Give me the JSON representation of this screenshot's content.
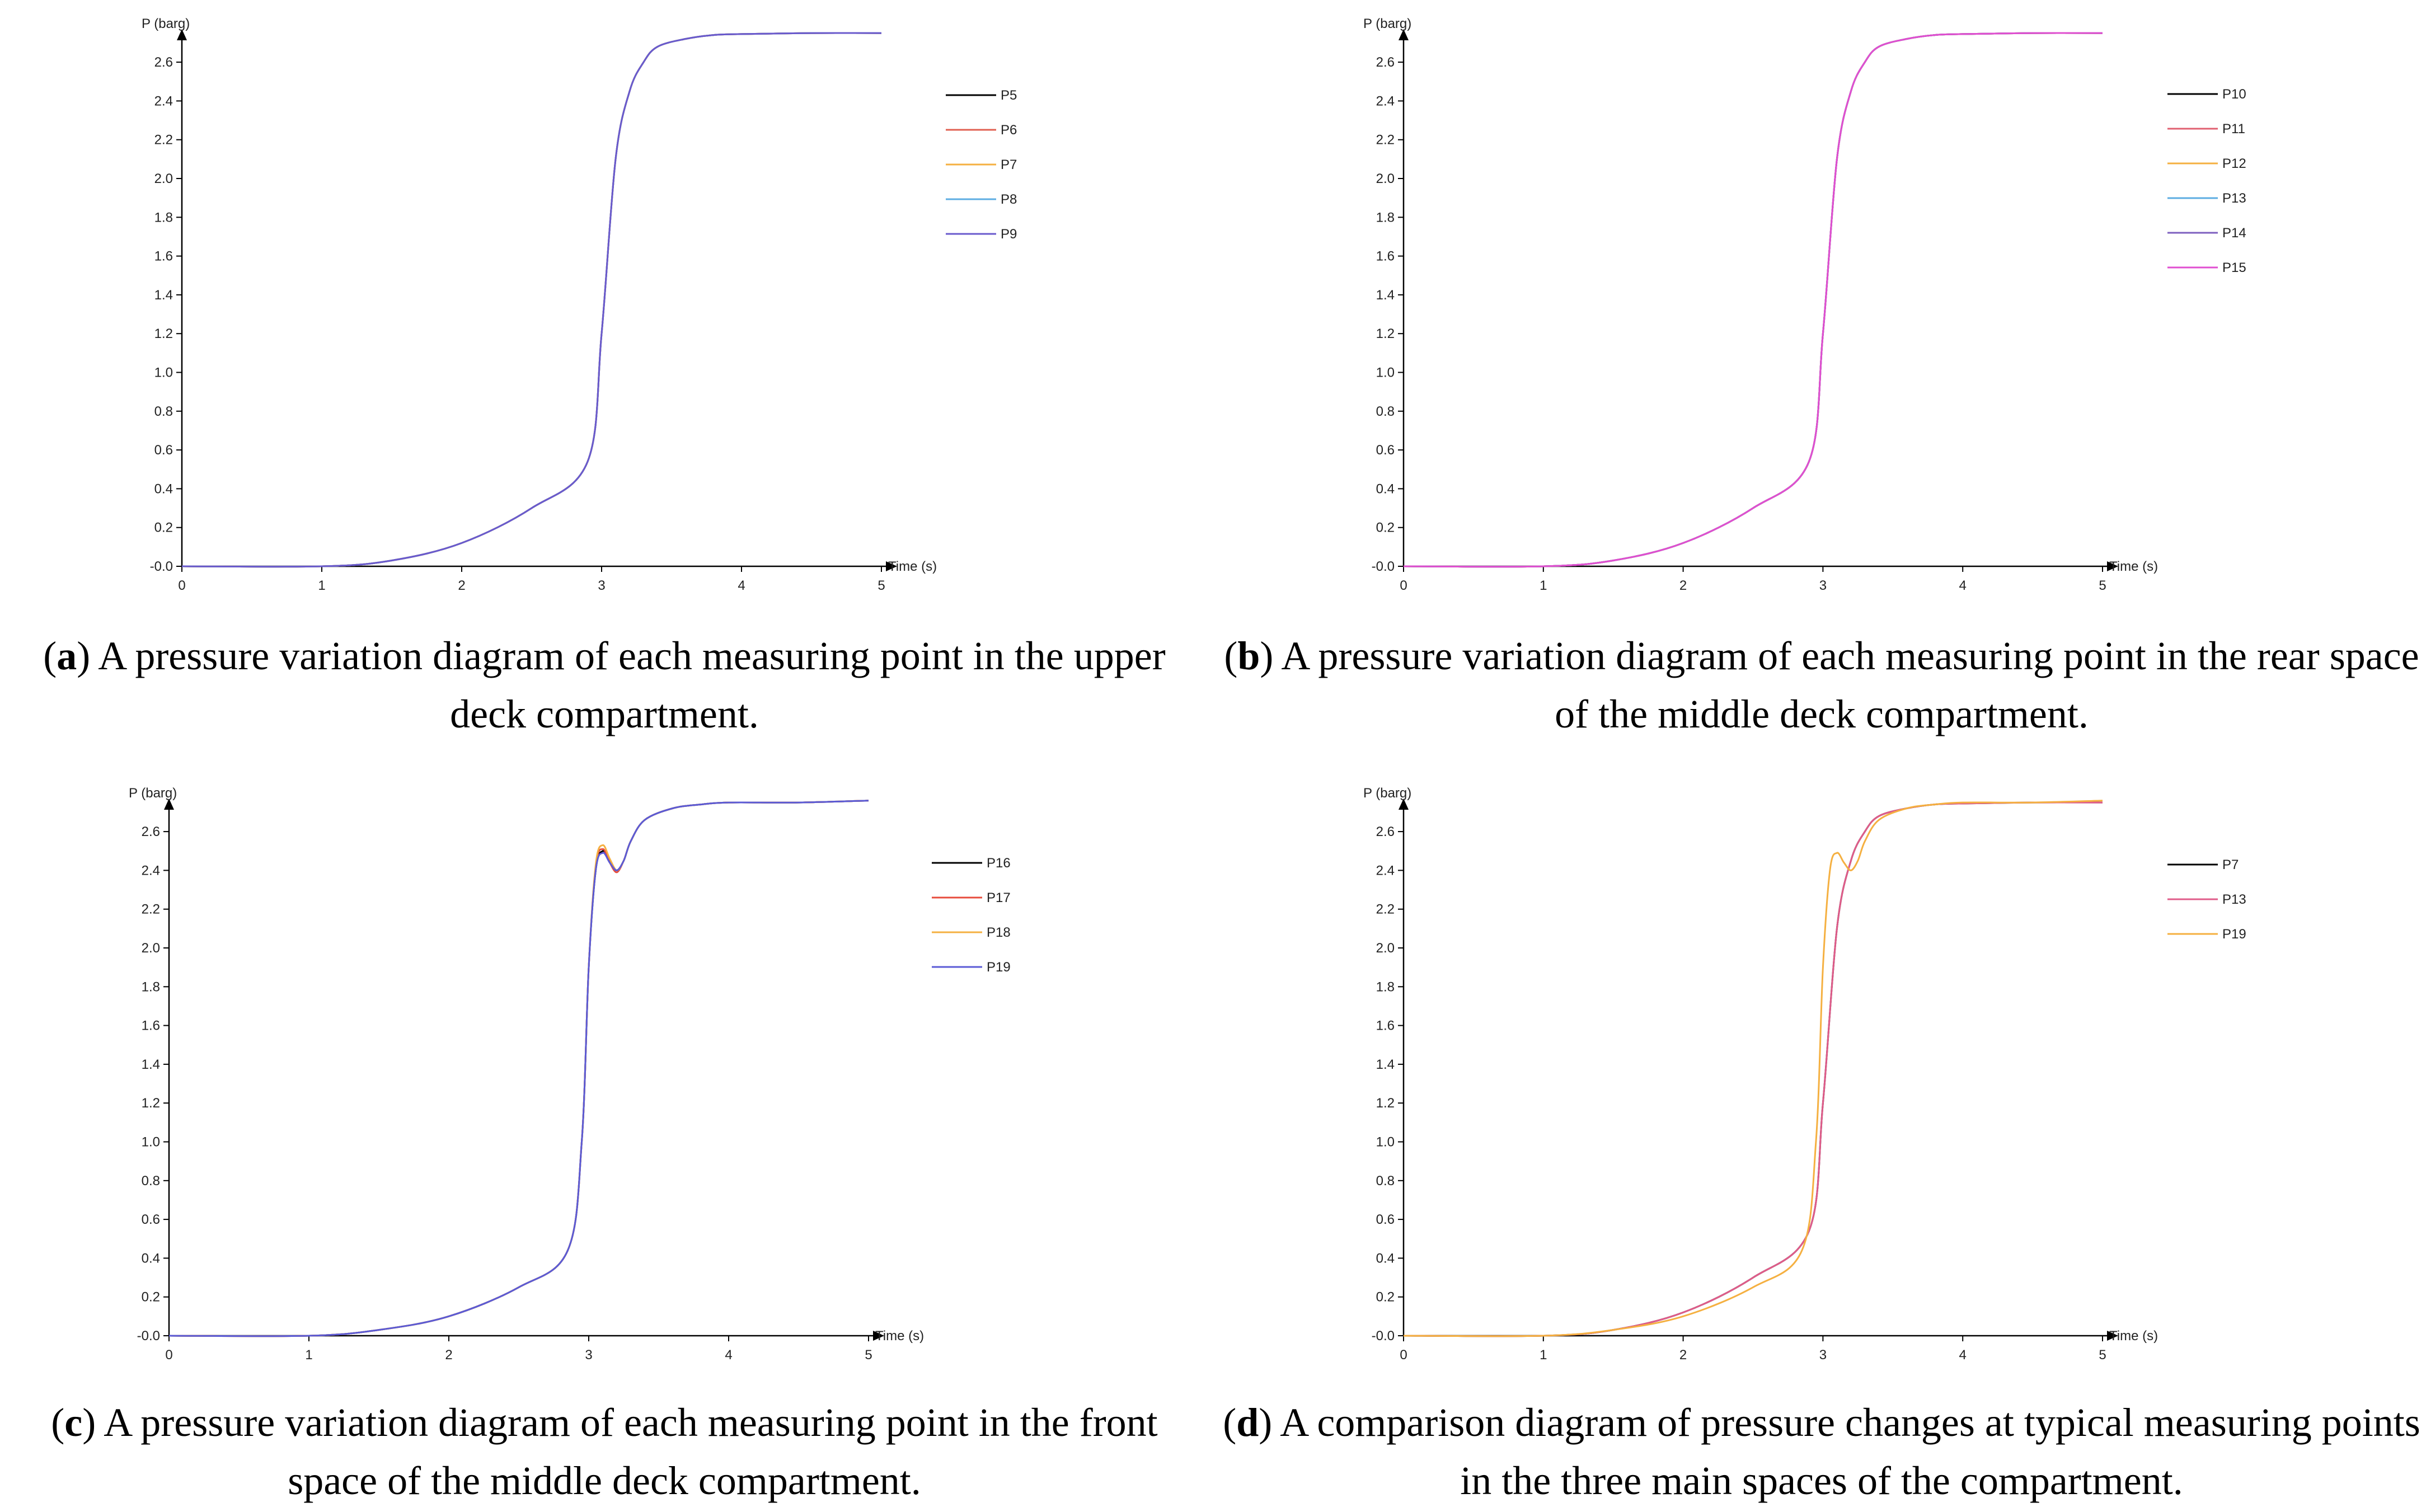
{
  "chart_data": [
    {
      "type": "line",
      "panel": "a",
      "ylabel": "P (barg)",
      "xlabel": "Time (s)",
      "xlim": [
        0,
        5
      ],
      "ylim": [
        0,
        2.75
      ],
      "xticks": [
        0,
        1,
        2,
        3,
        4,
        5
      ],
      "xtick_labels": [
        "0",
        "1",
        "2",
        "3",
        "4",
        "5"
      ],
      "yticks": [
        0,
        0.2,
        0.4,
        0.6,
        0.8,
        1.0,
        1.2,
        1.4,
        1.6,
        1.8,
        2.0,
        2.2,
        2.4,
        2.6
      ],
      "ytick_labels": [
        "-0.0",
        "0.2",
        "0.4",
        "0.6",
        "0.8",
        "1.0",
        "1.2",
        "1.4",
        "1.6",
        "1.8",
        "2.0",
        "2.2",
        "2.4",
        "2.6"
      ],
      "legend_position": "right",
      "caption_letter": "a",
      "caption_text": " A pressure variation diagram of each measuring point in the upper deck compartment.",
      "series": [
        {
          "name": "P5",
          "color": "#000000",
          "x": [
            0,
            1,
            1.5,
            2,
            2.5,
            2.9,
            3.0,
            3.1,
            3.2,
            3.3,
            3.4,
            3.6,
            3.8,
            4.0,
            4.5,
            5.0
          ],
          "y": [
            0,
            0,
            0.03,
            0.12,
            0.3,
            0.54,
            1.2,
            2.1,
            2.45,
            2.6,
            2.68,
            2.72,
            2.74,
            2.745,
            2.75,
            2.75
          ]
        },
        {
          "name": "P6",
          "color": "#e06050",
          "x": [
            0,
            1,
            1.5,
            2,
            2.5,
            2.9,
            3.0,
            3.1,
            3.2,
            3.3,
            3.4,
            3.6,
            3.8,
            4.0,
            4.5,
            5.0
          ],
          "y": [
            0,
            0,
            0.03,
            0.12,
            0.3,
            0.54,
            1.2,
            2.1,
            2.45,
            2.6,
            2.68,
            2.72,
            2.74,
            2.745,
            2.75,
            2.75
          ]
        },
        {
          "name": "P7",
          "color": "#f5b041",
          "x": [
            0,
            1,
            1.5,
            2,
            2.5,
            2.9,
            3.0,
            3.1,
            3.2,
            3.3,
            3.4,
            3.6,
            3.8,
            4.0,
            4.5,
            5.0
          ],
          "y": [
            0,
            0,
            0.03,
            0.12,
            0.3,
            0.54,
            1.2,
            2.1,
            2.45,
            2.6,
            2.68,
            2.72,
            2.74,
            2.745,
            2.75,
            2.75
          ]
        },
        {
          "name": "P8",
          "color": "#5dade2",
          "x": [
            0,
            1,
            1.5,
            2,
            2.5,
            2.9,
            3.0,
            3.1,
            3.2,
            3.3,
            3.4,
            3.6,
            3.8,
            4.0,
            4.5,
            5.0
          ],
          "y": [
            0,
            0,
            0.03,
            0.12,
            0.3,
            0.54,
            1.2,
            2.1,
            2.45,
            2.6,
            2.68,
            2.72,
            2.74,
            2.745,
            2.75,
            2.75
          ]
        },
        {
          "name": "P9",
          "color": "#6a5acd",
          "x": [
            0,
            1,
            1.5,
            2,
            2.5,
            2.9,
            3.0,
            3.1,
            3.2,
            3.3,
            3.4,
            3.6,
            3.8,
            4.0,
            4.5,
            5.0
          ],
          "y": [
            0,
            0,
            0.03,
            0.12,
            0.3,
            0.54,
            1.2,
            2.1,
            2.45,
            2.6,
            2.68,
            2.72,
            2.74,
            2.745,
            2.75,
            2.75
          ]
        }
      ]
    },
    {
      "type": "line",
      "panel": "b",
      "ylabel": "P (barg)",
      "xlabel": "Time (s)",
      "xlim": [
        0,
        5
      ],
      "ylim": [
        0,
        2.75
      ],
      "xticks": [
        0,
        1,
        2,
        3,
        4,
        5
      ],
      "xtick_labels": [
        "0",
        "1",
        "2",
        "3",
        "4",
        "5"
      ],
      "yticks": [
        0,
        0.2,
        0.4,
        0.6,
        0.8,
        1.0,
        1.2,
        1.4,
        1.6,
        1.8,
        2.0,
        2.2,
        2.4,
        2.6
      ],
      "ytick_labels": [
        "-0.0",
        "0.2",
        "0.4",
        "0.6",
        "0.8",
        "1.0",
        "1.2",
        "1.4",
        "1.6",
        "1.8",
        "2.0",
        "2.2",
        "2.4",
        "2.6"
      ],
      "legend_position": "right",
      "caption_letter": "b",
      "caption_text": " A pressure variation diagram of each measuring point in the rear space of the middle deck compartment.",
      "series": [
        {
          "name": "P10",
          "color": "#000000",
          "x": [
            0,
            1,
            1.5,
            2,
            2.5,
            2.9,
            3.0,
            3.1,
            3.2,
            3.3,
            3.4,
            3.6,
            3.8,
            4.0,
            4.5,
            5.0
          ],
          "y": [
            0,
            0,
            0.03,
            0.12,
            0.3,
            0.54,
            1.2,
            2.1,
            2.45,
            2.6,
            2.68,
            2.72,
            2.74,
            2.745,
            2.75,
            2.75
          ]
        },
        {
          "name": "P11",
          "color": "#e06070",
          "x": [
            0,
            1,
            1.5,
            2,
            2.5,
            2.9,
            3.0,
            3.1,
            3.2,
            3.3,
            3.4,
            3.6,
            3.8,
            4.0,
            4.5,
            5.0
          ],
          "y": [
            0,
            0,
            0.03,
            0.12,
            0.3,
            0.54,
            1.2,
            2.1,
            2.45,
            2.6,
            2.68,
            2.72,
            2.74,
            2.745,
            2.75,
            2.75
          ]
        },
        {
          "name": "P12",
          "color": "#f5b041",
          "x": [
            0,
            1,
            1.5,
            2,
            2.5,
            2.9,
            3.0,
            3.1,
            3.2,
            3.3,
            3.4,
            3.6,
            3.8,
            4.0,
            4.5,
            5.0
          ],
          "y": [
            0,
            0,
            0.03,
            0.12,
            0.3,
            0.54,
            1.2,
            2.1,
            2.45,
            2.6,
            2.68,
            2.72,
            2.74,
            2.745,
            2.75,
            2.75
          ]
        },
        {
          "name": "P13",
          "color": "#5dade2",
          "x": [
            0,
            1,
            1.5,
            2,
            2.5,
            2.9,
            3.0,
            3.1,
            3.2,
            3.3,
            3.4,
            3.6,
            3.8,
            4.0,
            4.5,
            5.0
          ],
          "y": [
            0,
            0,
            0.03,
            0.12,
            0.3,
            0.54,
            1.2,
            2.1,
            2.45,
            2.6,
            2.68,
            2.72,
            2.74,
            2.745,
            2.75,
            2.75
          ]
        },
        {
          "name": "P14",
          "color": "#7d5fbf",
          "x": [
            0,
            1,
            1.5,
            2,
            2.5,
            2.9,
            3.0,
            3.1,
            3.2,
            3.3,
            3.4,
            3.6,
            3.8,
            4.0,
            4.5,
            5.0
          ],
          "y": [
            0,
            0,
            0.03,
            0.12,
            0.3,
            0.54,
            1.2,
            2.1,
            2.45,
            2.6,
            2.68,
            2.72,
            2.74,
            2.745,
            2.75,
            2.75
          ]
        },
        {
          "name": "P15",
          "color": "#e04fd0",
          "x": [
            0,
            1,
            1.5,
            2,
            2.5,
            2.9,
            3.0,
            3.1,
            3.2,
            3.3,
            3.4,
            3.6,
            3.8,
            4.0,
            4.5,
            5.0
          ],
          "y": [
            0,
            0,
            0.03,
            0.12,
            0.3,
            0.54,
            1.2,
            2.1,
            2.45,
            2.6,
            2.68,
            2.72,
            2.74,
            2.745,
            2.75,
            2.75
          ]
        }
      ]
    },
    {
      "type": "line",
      "panel": "c",
      "ylabel": "P (barg)",
      "xlabel": "Time (s)",
      "xlim": [
        0,
        5
      ],
      "ylim": [
        0,
        2.75
      ],
      "xticks": [
        0,
        1,
        2,
        3,
        4,
        5
      ],
      "xtick_labels": [
        "0",
        "1",
        "2",
        "3",
        "4",
        "5"
      ],
      "yticks": [
        0,
        0.2,
        0.4,
        0.6,
        0.8,
        1.0,
        1.2,
        1.4,
        1.6,
        1.8,
        2.0,
        2.2,
        2.4,
        2.6
      ],
      "ytick_labels": [
        "-0.0",
        "0.2",
        "0.4",
        "0.6",
        "0.8",
        "1.0",
        "1.2",
        "1.4",
        "1.6",
        "1.8",
        "2.0",
        "2.2",
        "2.4",
        "2.6"
      ],
      "legend_position": "right",
      "caption_letter": "c",
      "caption_text": " A pressure variation diagram of each measuring point in the front space of the middle deck compartment.",
      "series": [
        {
          "name": "P16",
          "color": "#000000",
          "x": [
            0,
            1,
            1.5,
            2,
            2.5,
            2.85,
            2.95,
            3.0,
            3.05,
            3.1,
            3.15,
            3.2,
            3.25,
            3.3,
            3.4,
            3.6,
            3.8,
            4.0,
            4.5,
            5.0
          ],
          "y": [
            0,
            0,
            0.03,
            0.1,
            0.25,
            0.44,
            1.0,
            1.9,
            2.4,
            2.5,
            2.45,
            2.4,
            2.45,
            2.55,
            2.66,
            2.72,
            2.74,
            2.75,
            2.75,
            2.76
          ]
        },
        {
          "name": "P17",
          "color": "#e74c3c",
          "x": [
            0,
            1,
            1.5,
            2,
            2.5,
            2.85,
            2.95,
            3.0,
            3.05,
            3.1,
            3.15,
            3.2,
            3.25,
            3.3,
            3.4,
            3.6,
            3.8,
            4.0,
            4.5,
            5.0
          ],
          "y": [
            0,
            0,
            0.03,
            0.1,
            0.25,
            0.44,
            1.0,
            1.9,
            2.42,
            2.51,
            2.44,
            2.39,
            2.45,
            2.55,
            2.66,
            2.72,
            2.74,
            2.75,
            2.75,
            2.76
          ]
        },
        {
          "name": "P18",
          "color": "#f5b041",
          "x": [
            0,
            1,
            1.5,
            2,
            2.5,
            2.85,
            2.95,
            3.0,
            3.05,
            3.1,
            3.15,
            3.2,
            3.25,
            3.3,
            3.4,
            3.6,
            3.8,
            4.0,
            4.5,
            5.0
          ],
          "y": [
            0,
            0,
            0.03,
            0.1,
            0.25,
            0.44,
            1.0,
            1.9,
            2.43,
            2.53,
            2.46,
            2.4,
            2.45,
            2.55,
            2.66,
            2.72,
            2.74,
            2.75,
            2.75,
            2.76
          ]
        },
        {
          "name": "P19",
          "color": "#5b5bd6",
          "x": [
            0,
            1,
            1.5,
            2,
            2.5,
            2.85,
            2.95,
            3.0,
            3.05,
            3.1,
            3.15,
            3.2,
            3.25,
            3.3,
            3.4,
            3.6,
            3.8,
            4.0,
            4.5,
            5.0
          ],
          "y": [
            0,
            0,
            0.03,
            0.1,
            0.25,
            0.44,
            1.0,
            1.9,
            2.4,
            2.49,
            2.44,
            2.4,
            2.45,
            2.55,
            2.66,
            2.72,
            2.74,
            2.75,
            2.75,
            2.76
          ]
        }
      ]
    },
    {
      "type": "line",
      "panel": "d",
      "ylabel": "P (barg)",
      "xlabel": "Time (s)",
      "xlim": [
        0,
        5
      ],
      "ylim": [
        0,
        2.75
      ],
      "xticks": [
        0,
        1,
        2,
        3,
        4,
        5
      ],
      "xtick_labels": [
        "0",
        "1",
        "2",
        "3",
        "4",
        "5"
      ],
      "yticks": [
        0,
        0.2,
        0.4,
        0.6,
        0.8,
        1.0,
        1.2,
        1.4,
        1.6,
        1.8,
        2.0,
        2.2,
        2.4,
        2.6
      ],
      "ytick_labels": [
        "-0.0",
        "0.2",
        "0.4",
        "0.6",
        "0.8",
        "1.0",
        "1.2",
        "1.4",
        "1.6",
        "1.8",
        "2.0",
        "2.2",
        "2.4",
        "2.6"
      ],
      "legend_position": "right",
      "caption_letter": "d",
      "caption_text": " A comparison diagram of pressure changes at typical measuring points in the three main spaces of the compartment.",
      "series": [
        {
          "name": "P7",
          "color": "#000000",
          "x": [
            0,
            1,
            1.5,
            2,
            2.5,
            2.9,
            3.0,
            3.1,
            3.2,
            3.3,
            3.4,
            3.6,
            3.8,
            4.0,
            4.5,
            5.0
          ],
          "y": [
            0,
            0,
            0.03,
            0.12,
            0.3,
            0.54,
            1.2,
            2.1,
            2.45,
            2.6,
            2.68,
            2.72,
            2.74,
            2.745,
            2.75,
            2.75
          ]
        },
        {
          "name": "P13",
          "color": "#e05c8a",
          "x": [
            0,
            1,
            1.5,
            2,
            2.5,
            2.9,
            3.0,
            3.1,
            3.2,
            3.3,
            3.4,
            3.6,
            3.8,
            4.0,
            4.5,
            5.0
          ],
          "y": [
            0,
            0,
            0.03,
            0.12,
            0.3,
            0.54,
            1.2,
            2.1,
            2.45,
            2.6,
            2.68,
            2.72,
            2.74,
            2.745,
            2.75,
            2.75
          ]
        },
        {
          "name": "P19",
          "color": "#f5b041",
          "x": [
            0,
            1,
            1.5,
            2,
            2.5,
            2.85,
            2.95,
            3.0,
            3.05,
            3.1,
            3.15,
            3.2,
            3.25,
            3.3,
            3.4,
            3.6,
            3.8,
            4.0,
            4.5,
            5.0
          ],
          "y": [
            0,
            0,
            0.03,
            0.1,
            0.25,
            0.44,
            1.0,
            1.9,
            2.4,
            2.49,
            2.44,
            2.4,
            2.45,
            2.55,
            2.66,
            2.72,
            2.74,
            2.75,
            2.75,
            2.76
          ]
        }
      ]
    }
  ]
}
